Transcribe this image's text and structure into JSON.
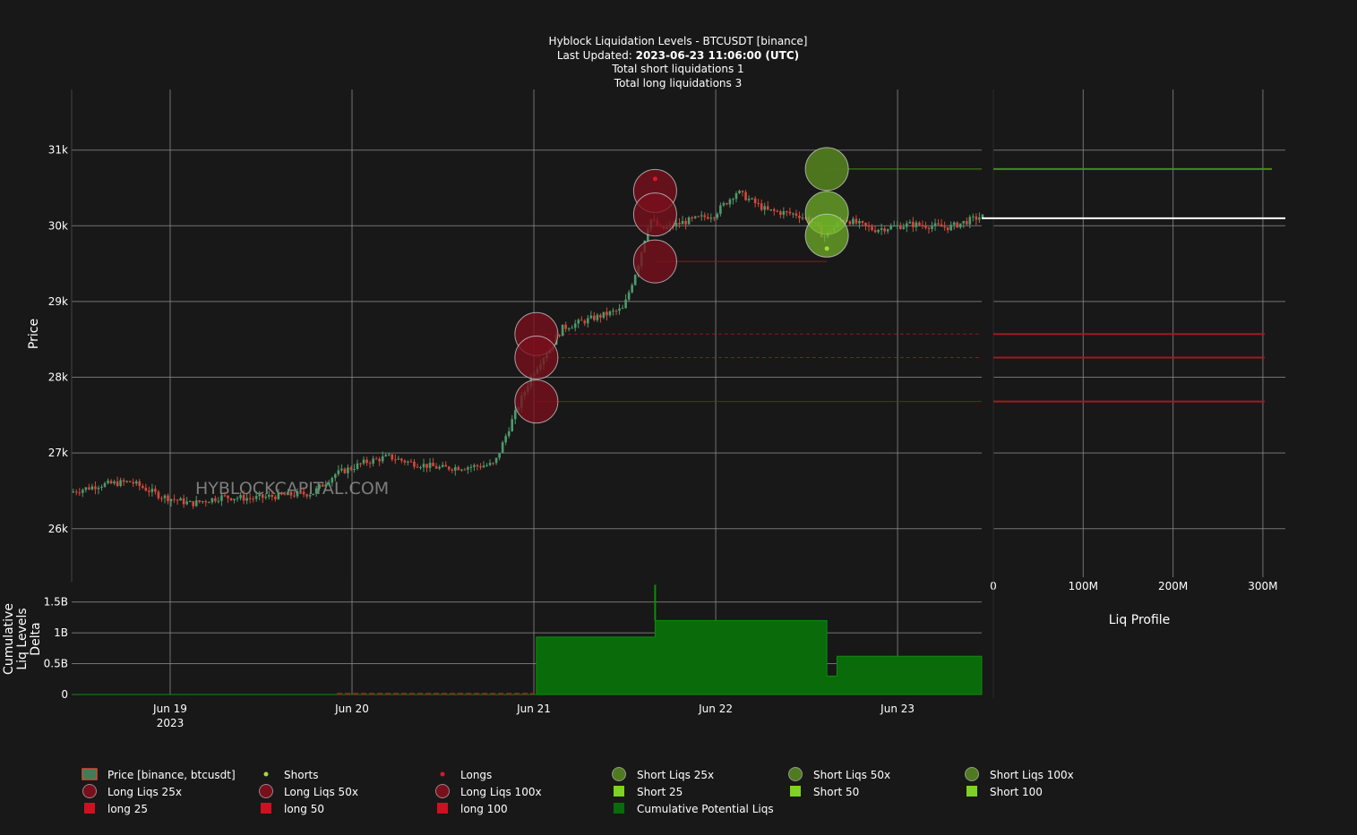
{
  "header": {
    "title": "Hyblock Liquidation Levels - BTCUSDT [binance]",
    "updated_label": "Last Updated: ",
    "updated_value": "2023-06-23 11:06:00 (UTC)",
    "short_total": "Total short liquidations 1",
    "long_total": "Total long liquidations 3"
  },
  "watermark": "HYBLOCKCAPITAL.COM",
  "colors": {
    "background": "#181818",
    "grid": "#8a8a8a",
    "candle_up": "#4e9a6b",
    "candle_down": "#d7483a",
    "long_bubble": "#7a0f1c",
    "short_bubble": "#4f7a1f",
    "short_bubble_light": "#74b62a",
    "long_level": "#a01a22",
    "short_level": "#4a8a20",
    "cumulative": "#0a6b0a",
    "current_price": "#ffffff"
  },
  "chart_data": [
    {
      "id": "price",
      "type": "candlestick",
      "ylabel": "Price",
      "ylim": [
        25300,
        31800
      ],
      "y_ticks": [
        {
          "value": 26000,
          "label": "26k"
        },
        {
          "value": 27000,
          "label": "27k"
        },
        {
          "value": 28000,
          "label": "28k"
        },
        {
          "value": 29000,
          "label": "29k"
        },
        {
          "value": 30000,
          "label": "30k"
        },
        {
          "value": 31000,
          "label": "31k"
        }
      ],
      "x_start": "2023-06-18 11:00",
      "x_end": "2023-06-23 11:06",
      "x_ticks": [
        {
          "value": "2023-06-19",
          "label": "Jun 19",
          "sublabel": "2023"
        },
        {
          "value": "2023-06-20",
          "label": "Jun 20"
        },
        {
          "value": "2023-06-21",
          "label": "Jun 21"
        },
        {
          "value": "2023-06-22",
          "label": "Jun 22"
        },
        {
          "value": "2023-06-23",
          "label": "Jun 23"
        }
      ],
      "price_path": [
        [
          "2023-06-18 11:00",
          26480
        ],
        [
          "2023-06-18 15:00",
          26580
        ],
        [
          "2023-06-18 19:00",
          26620
        ],
        [
          "2023-06-18 23:00",
          26430
        ],
        [
          "2023-06-19 03:00",
          26330
        ],
        [
          "2023-06-19 07:00",
          26420
        ],
        [
          "2023-06-19 11:00",
          26400
        ],
        [
          "2023-06-19 15:00",
          26440
        ],
        [
          "2023-06-19 19:00",
          26470
        ],
        [
          "2023-06-19 22:00",
          26720
        ],
        [
          "2023-06-20 00:00",
          26800
        ],
        [
          "2023-06-20 02:00",
          26880
        ],
        [
          "2023-06-20 05:00",
          26950
        ],
        [
          "2023-06-20 08:00",
          26870
        ],
        [
          "2023-06-20 12:00",
          26800
        ],
        [
          "2023-06-20 16:00",
          26820
        ],
        [
          "2023-06-20 19:00",
          26850
        ],
        [
          "2023-06-20 21:00",
          27350
        ],
        [
          "2023-06-21 00:00",
          28050
        ],
        [
          "2023-06-21 02:00",
          28350
        ],
        [
          "2023-06-21 04:00",
          28650
        ],
        [
          "2023-06-21 08:00",
          28780
        ],
        [
          "2023-06-21 12:00",
          28900
        ],
        [
          "2023-06-21 14:00",
          29500
        ],
        [
          "2023-06-21 15:30",
          30100
        ],
        [
          "2023-06-21 17:00",
          29950
        ],
        [
          "2023-06-21 20:00",
          30050
        ],
        [
          "2023-06-22 00:00",
          30150
        ],
        [
          "2023-06-22 03:00",
          30450
        ],
        [
          "2023-06-22 07:00",
          30200
        ],
        [
          "2023-06-22 11:00",
          30150
        ],
        [
          "2023-06-22 13:00",
          30050
        ],
        [
          "2023-06-22 14:30",
          29850
        ],
        [
          "2023-06-22 17:00",
          30100
        ],
        [
          "2023-06-22 21:00",
          29950
        ],
        [
          "2023-06-23 02:00",
          30020
        ],
        [
          "2023-06-23 07:00",
          29980
        ],
        [
          "2023-06-23 11:06",
          30120
        ]
      ],
      "long_bubbles": [
        {
          "time": "2023-06-21 00:20",
          "price": 28570,
          "size": "100x"
        },
        {
          "time": "2023-06-21 00:20",
          "price": 28260,
          "size": "50x"
        },
        {
          "time": "2023-06-21 00:20",
          "price": 27680,
          "size": "25x"
        },
        {
          "time": "2023-06-21 16:00",
          "price": 30460,
          "size": "100x"
        },
        {
          "time": "2023-06-21 16:00",
          "price": 30150,
          "size": "50x"
        },
        {
          "time": "2023-06-21 16:00",
          "price": 29530,
          "size": "25x"
        }
      ],
      "short_bubbles": [
        {
          "time": "2023-06-22 14:40",
          "price": 30750,
          "size": "25x"
        },
        {
          "time": "2023-06-22 14:40",
          "price": 30170,
          "size": "50x"
        },
        {
          "time": "2023-06-22 14:40",
          "price": 29870,
          "size": "100x"
        }
      ],
      "short_markers": [
        {
          "time": "2023-06-22 14:40",
          "price": 29700
        }
      ],
      "long_markers": [
        {
          "time": "2023-06-21 16:00",
          "price": 30620
        }
      ],
      "long_levels": [
        {
          "start": "2023-06-21 00:20",
          "price": 28570,
          "dashed": true
        },
        {
          "start": "2023-06-21 00:20",
          "price": 28260,
          "dashed": true
        },
        {
          "start": "2023-06-21 00:20",
          "price": 27680,
          "dashed": false
        },
        {
          "start": "2023-06-21 16:00",
          "price": 29530,
          "dashed": false,
          "end": "2023-06-22 14:40"
        }
      ],
      "short_levels": [
        {
          "start": "2023-06-22 14:40",
          "price": 30750
        }
      ],
      "current_price": 30100
    },
    {
      "id": "liq-profile",
      "type": "bar",
      "orientation": "horizontal",
      "xlabel": "Liq Profile",
      "xlim": [
        0,
        325
      ],
      "x_ticks": [
        {
          "value": 0,
          "label": "0"
        },
        {
          "value": 100,
          "label": "100M"
        },
        {
          "value": 200,
          "label": "200M"
        },
        {
          "value": 300,
          "label": "300M"
        }
      ],
      "bars": [
        {
          "price": 30750,
          "value": 310,
          "side": "short"
        },
        {
          "price": 28570,
          "value": 302,
          "side": "long"
        },
        {
          "price": 28260,
          "value": 302,
          "side": "long"
        },
        {
          "price": 27680,
          "value": 302,
          "side": "long"
        }
      ],
      "current_price": 30100
    },
    {
      "id": "cumulative",
      "type": "area",
      "ylabel_lines": [
        "Cumulative",
        "Liq Levels",
        "Delta"
      ],
      "ylim": [
        0,
        1.8
      ],
      "y_ticks": [
        {
          "value": 0,
          "label": "0"
        },
        {
          "value": 0.5,
          "label": "0.5B"
        },
        {
          "value": 1,
          "label": "1B"
        },
        {
          "value": 1.5,
          "label": "1.5B"
        }
      ],
      "steps": [
        [
          "2023-06-18 11:00",
          0.0
        ],
        [
          "2023-06-21 00:20",
          0.93
        ],
        [
          "2023-06-21 16:00",
          1.2
        ],
        [
          "2023-06-22 14:40",
          0.3
        ],
        [
          "2023-06-22 16:00",
          0.62
        ]
      ],
      "spike": {
        "time": "2023-06-21 16:00",
        "value": 1.78
      }
    }
  ],
  "legend": [
    {
      "label": "Price [binance, btcusdt]",
      "symbol": "candle"
    },
    {
      "label": "Shorts",
      "symbol": "dot-green"
    },
    {
      "label": "Longs",
      "symbol": "dot-red"
    },
    {
      "label": "Short Liqs 25x",
      "symbol": "circle-green"
    },
    {
      "label": "Short Liqs 50x",
      "symbol": "circle-green"
    },
    {
      "label": "Short Liqs 100x",
      "symbol": "circle-green"
    },
    {
      "label": "Long Liqs 25x",
      "symbol": "circle-red"
    },
    {
      "label": "Long Liqs 50x",
      "symbol": "circle-red"
    },
    {
      "label": "Long Liqs 100x",
      "symbol": "circle-red"
    },
    {
      "label": "Short 25",
      "symbol": "square-lightgreen"
    },
    {
      "label": "Short 50",
      "symbol": "square-lightgreen"
    },
    {
      "label": "Short 100",
      "symbol": "square-lightgreen"
    },
    {
      "label": "long 25",
      "symbol": "square-red"
    },
    {
      "label": "long 50",
      "symbol": "square-red"
    },
    {
      "label": "long 100",
      "symbol": "square-red"
    },
    {
      "label": "Cumulative Potential Liqs",
      "symbol": "square-darkgreen"
    }
  ]
}
